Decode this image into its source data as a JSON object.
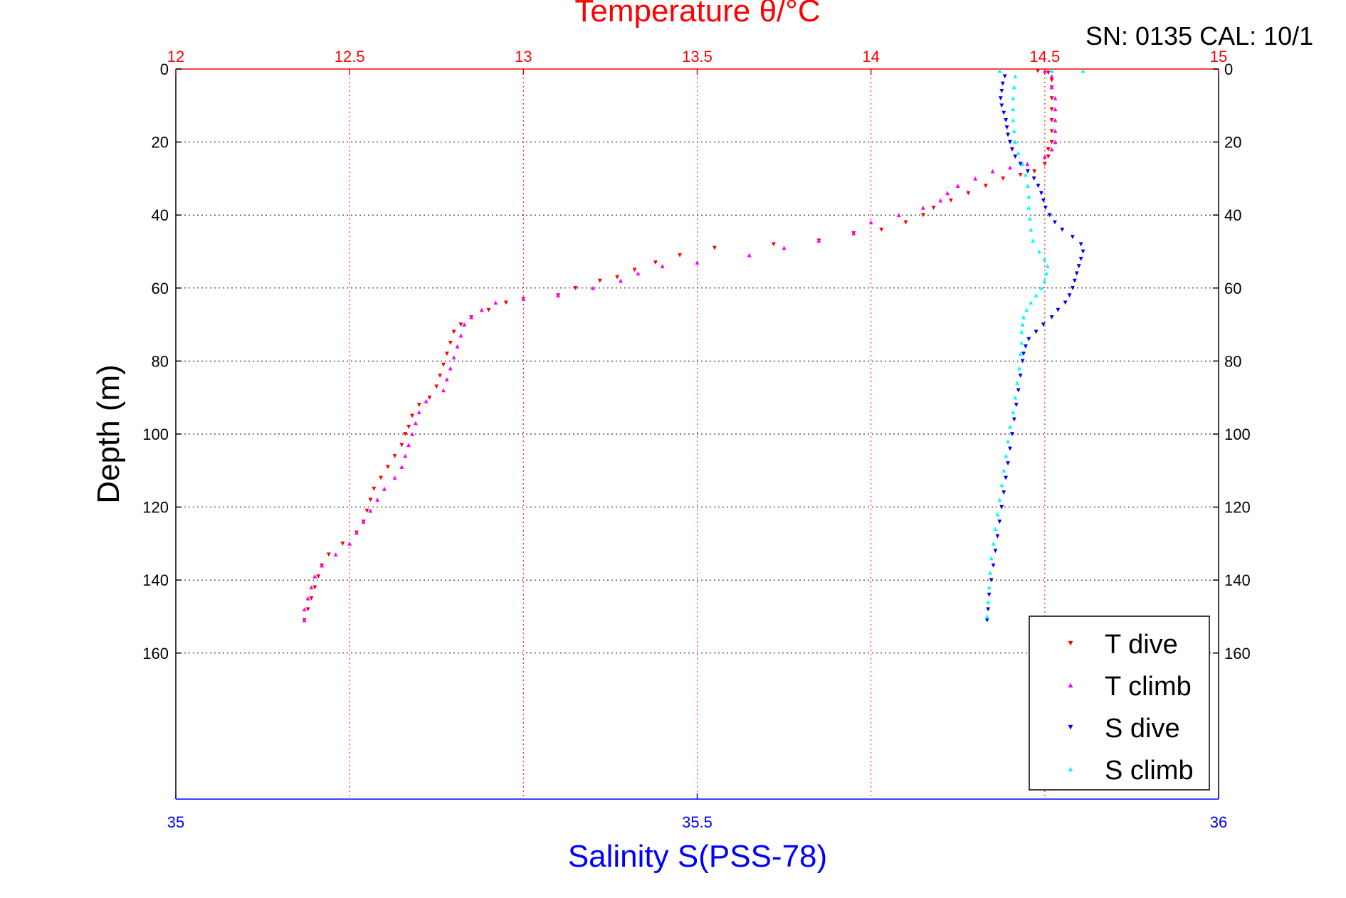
{
  "chart_data": {
    "type": "scatter",
    "title": "Temperature θ/°C",
    "subtitle": "SN: 0135  CAL: 10/1",
    "ylabel": "Depth (m)",
    "ylim": [
      0,
      200
    ],
    "y_reversed": true,
    "yticks": [
      0,
      20,
      40,
      60,
      80,
      100,
      120,
      140,
      160
    ],
    "top_axis": {
      "label": "Temperature θ/°C",
      "range": [
        12,
        15
      ],
      "ticks": [
        "12",
        "12.5",
        "13",
        "13.5",
        "14",
        "14.5",
        "15"
      ],
      "color": "#ff0000"
    },
    "bottom_axis": {
      "label": "Salinity S(PSS-78)",
      "range": [
        35,
        36
      ],
      "ticks": [
        "35",
        "35.5",
        "36"
      ],
      "color": "#0000ff"
    },
    "grid": true,
    "legend_position": "bottom-right",
    "series": [
      {
        "name": "T dive",
        "axis": "temperature",
        "color": "#ff0000",
        "marker": "triangle-down",
        "points": [
          [
            14.48,
            0.5
          ],
          [
            14.51,
            1
          ],
          [
            14.52,
            3
          ],
          [
            14.52,
            5
          ],
          [
            14.52,
            8
          ],
          [
            14.52,
            11
          ],
          [
            14.52,
            14
          ],
          [
            14.52,
            17
          ],
          [
            14.52,
            20
          ],
          [
            14.51,
            22
          ],
          [
            14.51,
            24
          ],
          [
            14.5,
            26
          ],
          [
            14.47,
            28
          ],
          [
            14.43,
            29
          ],
          [
            14.38,
            30
          ],
          [
            14.33,
            32
          ],
          [
            14.28,
            34
          ],
          [
            14.23,
            36
          ],
          [
            14.18,
            38
          ],
          [
            14.15,
            40
          ],
          [
            14.1,
            42
          ],
          [
            14.03,
            44
          ],
          [
            13.95,
            45
          ],
          [
            13.85,
            47
          ],
          [
            13.72,
            48
          ],
          [
            13.55,
            49
          ],
          [
            13.45,
            51
          ],
          [
            13.38,
            53
          ],
          [
            13.32,
            55
          ],
          [
            13.27,
            57
          ],
          [
            13.22,
            58
          ],
          [
            13.15,
            60
          ],
          [
            13.1,
            62
          ],
          [
            13.0,
            63
          ],
          [
            12.95,
            64
          ],
          [
            12.9,
            66
          ],
          [
            12.85,
            68
          ],
          [
            12.82,
            70
          ],
          [
            12.8,
            72
          ],
          [
            12.79,
            75
          ],
          [
            12.78,
            78
          ],
          [
            12.77,
            81
          ],
          [
            12.76,
            84
          ],
          [
            12.75,
            87
          ],
          [
            12.73,
            90
          ],
          [
            12.7,
            92
          ],
          [
            12.68,
            95
          ],
          [
            12.67,
            98
          ],
          [
            12.66,
            100
          ],
          [
            12.65,
            103
          ],
          [
            12.63,
            106
          ],
          [
            12.61,
            109
          ],
          [
            12.59,
            112
          ],
          [
            12.57,
            115
          ],
          [
            12.56,
            118
          ],
          [
            12.55,
            121
          ],
          [
            12.54,
            124
          ],
          [
            12.52,
            127
          ],
          [
            12.48,
            130
          ],
          [
            12.44,
            133
          ],
          [
            12.42,
            136
          ],
          [
            12.41,
            139
          ],
          [
            12.4,
            142
          ],
          [
            12.39,
            145
          ],
          [
            12.38,
            148
          ],
          [
            12.37,
            151
          ]
        ]
      },
      {
        "name": "T climb",
        "axis": "temperature",
        "color": "#ff00ff",
        "marker": "triangle-up",
        "points": [
          [
            14.5,
            0.5
          ],
          [
            14.52,
            2
          ],
          [
            14.52,
            5
          ],
          [
            14.53,
            8
          ],
          [
            14.53,
            11
          ],
          [
            14.53,
            14
          ],
          [
            14.53,
            17
          ],
          [
            14.53,
            20
          ],
          [
            14.52,
            22
          ],
          [
            14.5,
            24
          ],
          [
            14.45,
            26
          ],
          [
            14.4,
            27
          ],
          [
            14.35,
            28
          ],
          [
            14.3,
            30
          ],
          [
            14.25,
            32
          ],
          [
            14.22,
            34
          ],
          [
            14.2,
            36
          ],
          [
            14.15,
            38
          ],
          [
            14.08,
            40
          ],
          [
            14.0,
            42
          ],
          [
            13.95,
            45
          ],
          [
            13.85,
            47
          ],
          [
            13.75,
            49
          ],
          [
            13.65,
            51
          ],
          [
            13.5,
            53
          ],
          [
            13.4,
            54
          ],
          [
            13.33,
            56
          ],
          [
            13.28,
            58
          ],
          [
            13.2,
            60
          ],
          [
            13.1,
            62
          ],
          [
            13.0,
            63
          ],
          [
            12.92,
            64
          ],
          [
            12.88,
            66
          ],
          [
            12.85,
            68
          ],
          [
            12.83,
            70
          ],
          [
            12.82,
            73
          ],
          [
            12.81,
            76
          ],
          [
            12.8,
            79
          ],
          [
            12.79,
            82
          ],
          [
            12.78,
            85
          ],
          [
            12.77,
            88
          ],
          [
            12.72,
            91
          ],
          [
            12.7,
            94
          ],
          [
            12.69,
            97
          ],
          [
            12.68,
            100
          ],
          [
            12.67,
            103
          ],
          [
            12.66,
            106
          ],
          [
            12.65,
            109
          ],
          [
            12.63,
            112
          ],
          [
            12.6,
            115
          ],
          [
            12.58,
            118
          ],
          [
            12.56,
            121
          ],
          [
            12.54,
            124
          ],
          [
            12.52,
            127
          ],
          [
            12.5,
            130
          ],
          [
            12.46,
            133
          ],
          [
            12.42,
            136
          ],
          [
            12.4,
            139
          ],
          [
            12.39,
            142
          ],
          [
            12.38,
            145
          ],
          [
            12.37,
            148
          ],
          [
            12.37,
            151
          ]
        ]
      },
      {
        "name": "S dive",
        "axis": "salinity",
        "color": "#0000ff",
        "marker": "triangle-down",
        "points": [
          [
            35.795,
            2
          ],
          [
            35.793,
            4
          ],
          [
            35.792,
            6
          ],
          [
            35.791,
            8
          ],
          [
            35.792,
            10
          ],
          [
            35.794,
            12
          ],
          [
            35.796,
            14
          ],
          [
            35.797,
            16
          ],
          [
            35.798,
            18
          ],
          [
            35.8,
            20
          ],
          [
            35.802,
            22
          ],
          [
            35.805,
            24
          ],
          [
            35.81,
            26
          ],
          [
            35.817,
            28
          ],
          [
            35.823,
            30
          ],
          [
            35.827,
            32
          ],
          [
            35.83,
            34
          ],
          [
            35.832,
            36
          ],
          [
            35.834,
            38
          ],
          [
            35.838,
            40
          ],
          [
            35.843,
            42
          ],
          [
            35.85,
            44
          ],
          [
            35.86,
            46
          ],
          [
            35.868,
            48
          ],
          [
            35.87,
            50
          ],
          [
            35.868,
            52
          ],
          [
            35.866,
            54
          ],
          [
            35.864,
            56
          ],
          [
            35.862,
            58
          ],
          [
            35.86,
            60
          ],
          [
            35.857,
            62
          ],
          [
            35.853,
            64
          ],
          [
            35.846,
            66
          ],
          [
            35.84,
            68
          ],
          [
            35.832,
            70
          ],
          [
            35.825,
            72
          ],
          [
            35.818,
            74
          ],
          [
            35.815,
            76
          ],
          [
            35.813,
            78
          ],
          [
            35.812,
            80
          ],
          [
            35.81,
            84
          ],
          [
            35.808,
            88
          ],
          [
            35.806,
            92
          ],
          [
            35.804,
            96
          ],
          [
            35.802,
            100
          ],
          [
            35.8,
            104
          ],
          [
            35.798,
            108
          ],
          [
            35.796,
            112
          ],
          [
            35.794,
            116
          ],
          [
            35.792,
            120
          ],
          [
            35.79,
            124
          ],
          [
            35.788,
            128
          ],
          [
            35.786,
            132
          ],
          [
            35.784,
            136
          ],
          [
            35.782,
            140
          ],
          [
            35.78,
            144
          ],
          [
            35.779,
            148
          ],
          [
            35.778,
            151
          ]
        ]
      },
      {
        "name": "S climb",
        "axis": "salinity",
        "color": "#00ffff",
        "marker": "triangle-up",
        "points": [
          [
            35.79,
            0.5
          ],
          [
            35.84,
            0.5
          ],
          [
            35.87,
            0.5
          ],
          [
            35.805,
            2
          ],
          [
            35.804,
            5
          ],
          [
            35.803,
            8
          ],
          [
            35.803,
            11
          ],
          [
            35.803,
            14
          ],
          [
            35.804,
            17
          ],
          [
            35.805,
            20
          ],
          [
            35.808,
            23
          ],
          [
            35.812,
            26
          ],
          [
            35.815,
            29
          ],
          [
            35.817,
            32
          ],
          [
            35.818,
            35
          ],
          [
            35.818,
            38
          ],
          [
            35.819,
            41
          ],
          [
            35.82,
            44
          ],
          [
            35.822,
            47
          ],
          [
            35.828,
            50
          ],
          [
            35.833,
            52
          ],
          [
            35.836,
            54
          ],
          [
            35.835,
            56
          ],
          [
            35.833,
            58
          ],
          [
            35.83,
            60
          ],
          [
            35.825,
            62
          ],
          [
            35.82,
            64
          ],
          [
            35.816,
            66
          ],
          [
            35.813,
            68
          ],
          [
            35.812,
            70
          ],
          [
            35.811,
            72
          ],
          [
            35.811,
            75
          ],
          [
            35.81,
            78
          ],
          [
            35.809,
            82
          ],
          [
            35.807,
            86
          ],
          [
            35.805,
            90
          ],
          [
            35.803,
            94
          ],
          [
            35.8,
            98
          ],
          [
            35.798,
            102
          ],
          [
            35.796,
            106
          ],
          [
            35.794,
            110
          ],
          [
            35.792,
            114
          ],
          [
            35.79,
            118
          ],
          [
            35.788,
            122
          ],
          [
            35.786,
            126
          ],
          [
            35.784,
            130
          ],
          [
            35.782,
            134
          ],
          [
            35.781,
            138
          ],
          [
            35.78,
            142
          ],
          [
            35.779,
            146
          ],
          [
            35.778,
            150
          ]
        ]
      }
    ]
  }
}
